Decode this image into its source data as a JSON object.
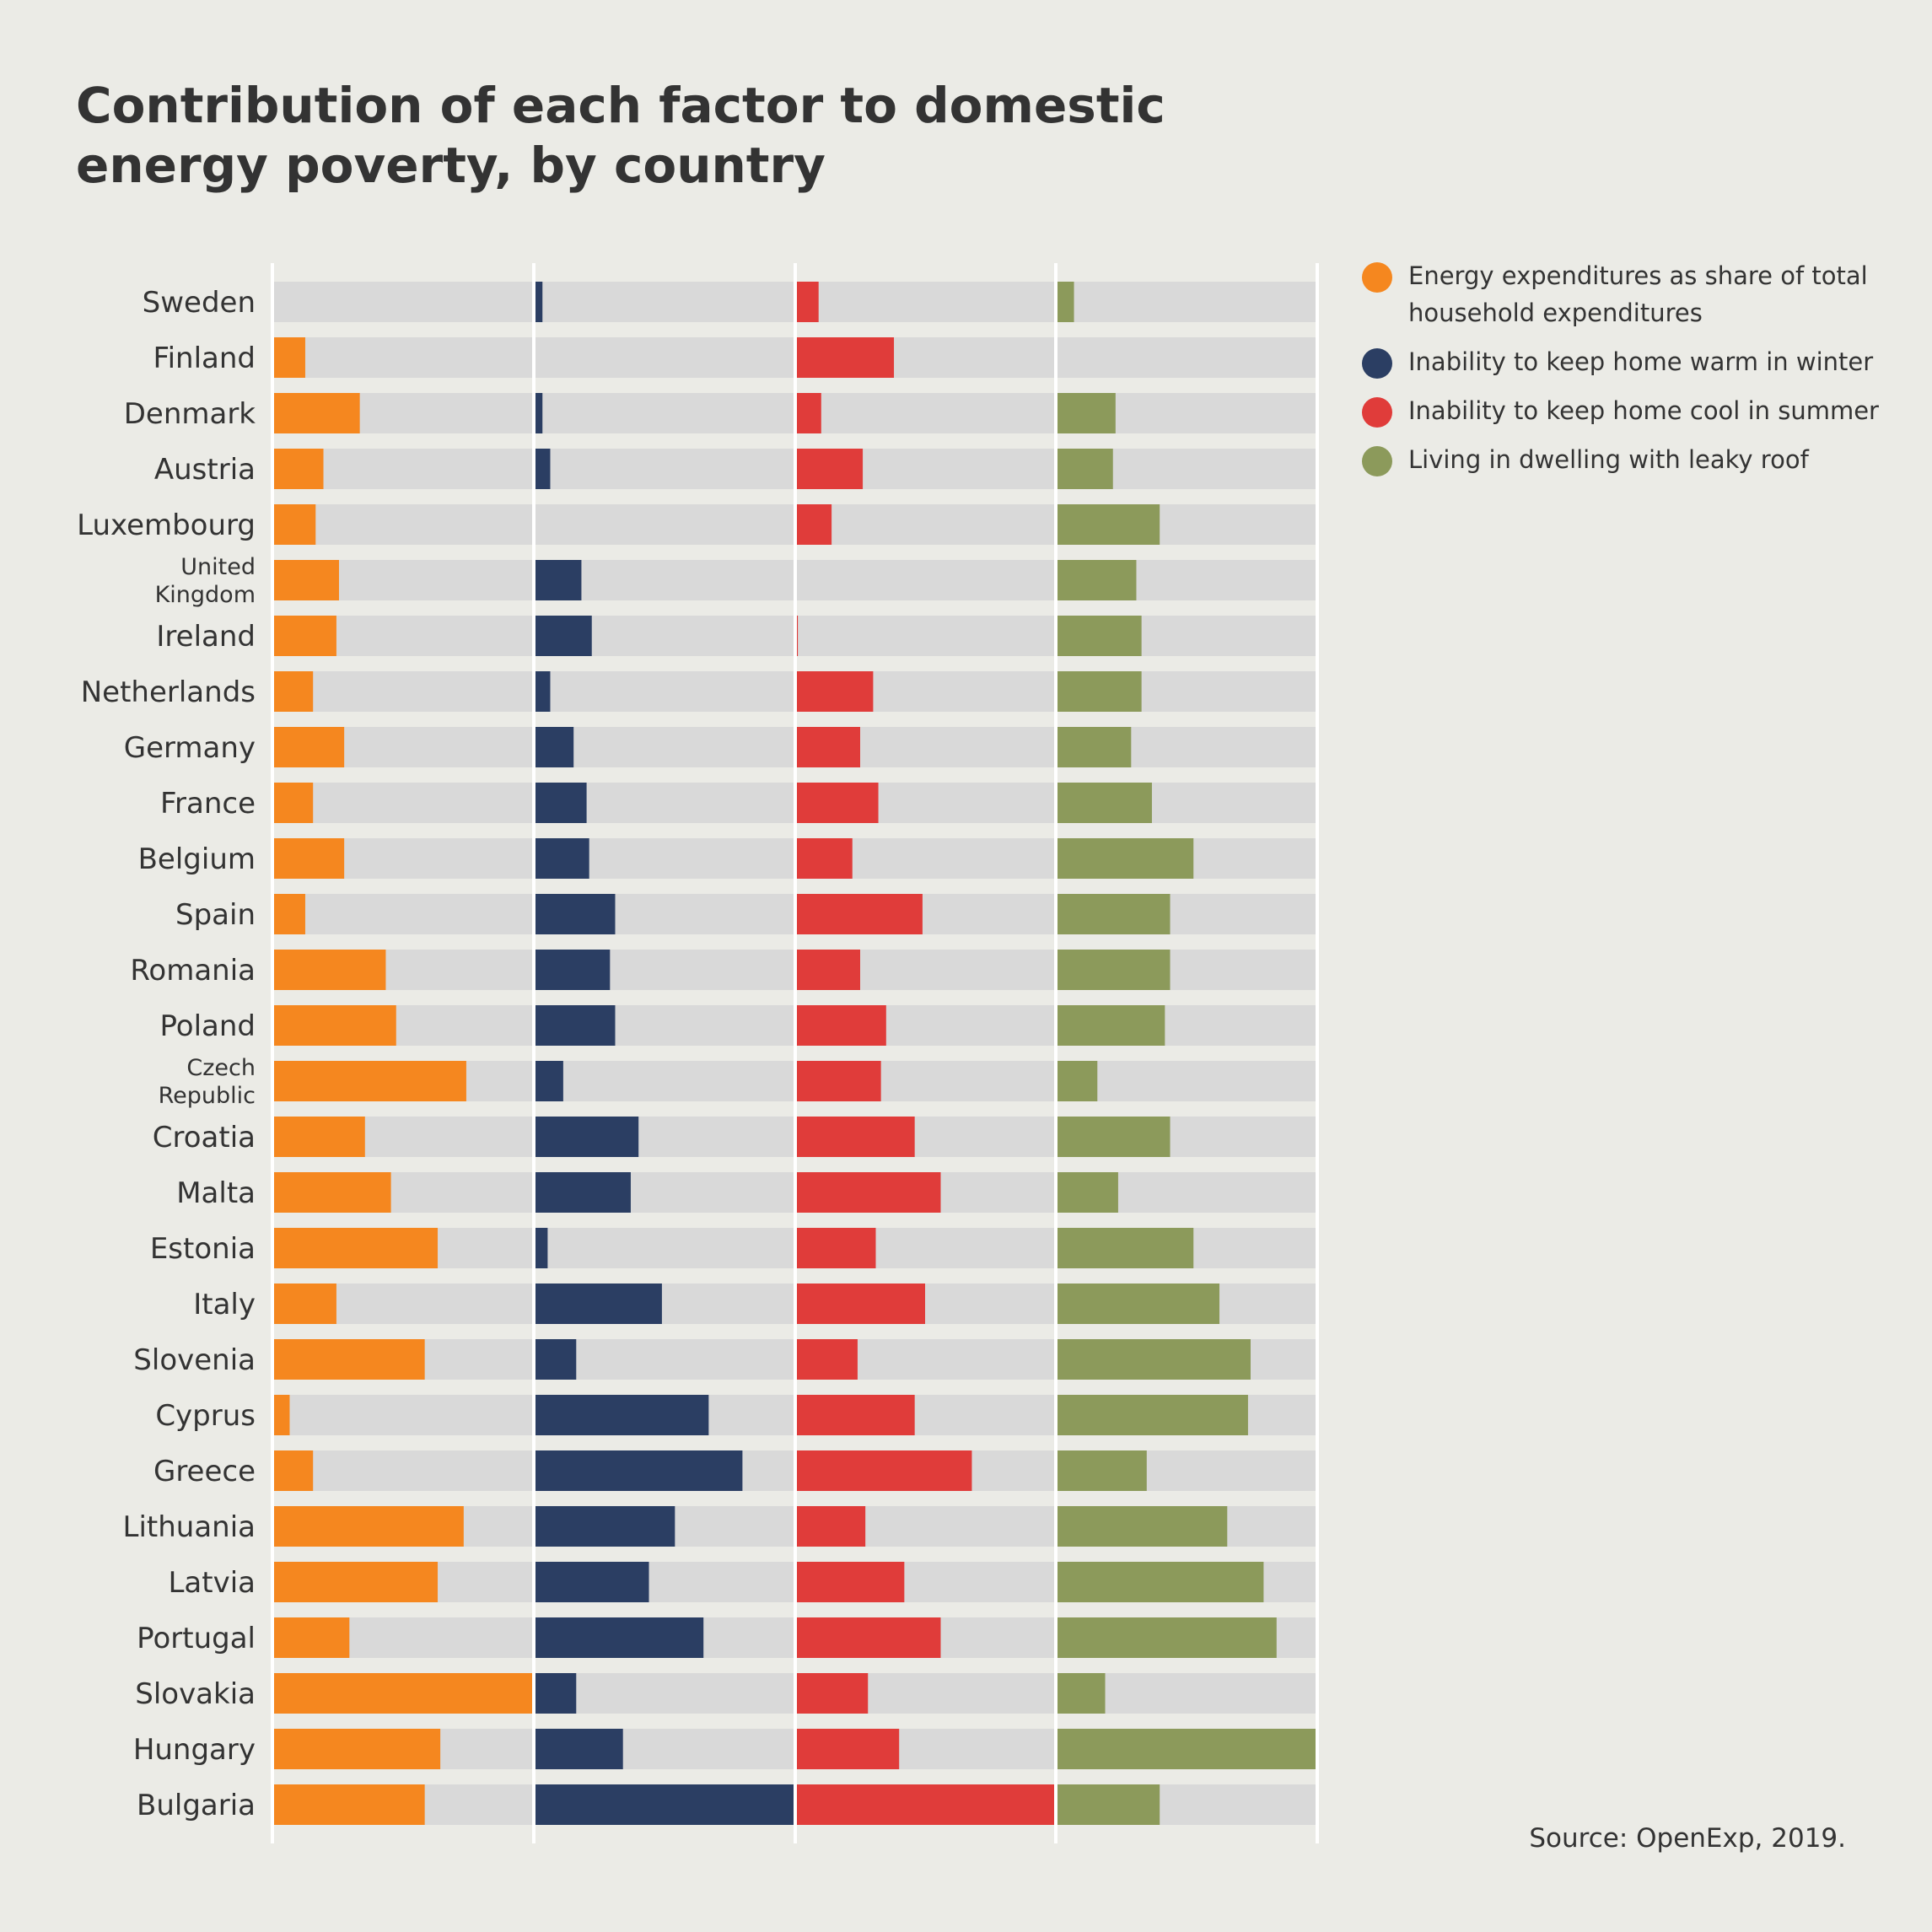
{
  "title_lines": [
    "Contribution of each factor to domestic",
    "energy poverty, by country"
  ],
  "source": "Source: OpenExp, 2019.",
  "colors": {
    "background": "#ebebe6",
    "track": "#d9d9d9",
    "divider": "#ffffff",
    "text": "#333333"
  },
  "legend": [
    {
      "label": "Energy expenditures as share of total household expenditures",
      "lines": [
        "Energy expenditures as share of total",
        "household expenditures"
      ],
      "color": "#f5871f"
    },
    {
      "label": "Inability to keep home warm in winter",
      "lines": [
        "Inability to keep home warm in winter"
      ],
      "color": "#2b3e63"
    },
    {
      "label": "Inability to keep home cool in summer",
      "lines": [
        "Inability to keep home cool in summer"
      ],
      "color": "#e03c3a"
    },
    {
      "label": "Living in dwelling with leaky roof",
      "lines": [
        "Living in dwelling with leaky roof"
      ],
      "color": "#8c9a5b"
    }
  ],
  "chart_data": {
    "type": "bar",
    "orientation": "horizontal",
    "layout": "small-multiples",
    "scale": "relative share of panel width (0-1)",
    "categories": [
      "Sweden",
      "Finland",
      "Denmark",
      "Austria",
      "Luxembourg",
      "United Kingdom",
      "Ireland",
      "Netherlands",
      "Germany",
      "France",
      "Belgium",
      "Spain",
      "Romania",
      "Poland",
      "Czech Republic",
      "Croatia",
      "Malta",
      "Estonia",
      "Italy",
      "Slovenia",
      "Cyprus",
      "Greece",
      "Lithuania",
      "Latvia",
      "Portugal",
      "Slovakia",
      "Hungary",
      "Bulgaria"
    ],
    "category_lines": [
      [
        "Sweden"
      ],
      [
        "Finland"
      ],
      [
        "Denmark"
      ],
      [
        "Austria"
      ],
      [
        "Luxembourg"
      ],
      [
        "United",
        "Kingdom"
      ],
      [
        "Ireland"
      ],
      [
        "Netherlands"
      ],
      [
        "Germany"
      ],
      [
        "France"
      ],
      [
        "Belgium"
      ],
      [
        "Spain"
      ],
      [
        "Romania"
      ],
      [
        "Poland"
      ],
      [
        "Czech",
        "Republic"
      ],
      [
        "Croatia"
      ],
      [
        "Malta"
      ],
      [
        "Estonia"
      ],
      [
        "Italy"
      ],
      [
        "Slovenia"
      ],
      [
        "Cyprus"
      ],
      [
        "Greece"
      ],
      [
        "Lithuania"
      ],
      [
        "Latvia"
      ],
      [
        "Portugal"
      ],
      [
        "Slovakia"
      ],
      [
        "Hungary"
      ],
      [
        "Bulgaria"
      ]
    ],
    "series": [
      {
        "name": "Energy expenditures as share of total household expenditures",
        "color": "#f5871f",
        "values": [
          0,
          0.12,
          0.33,
          0.19,
          0.16,
          0.25,
          0.24,
          0.15,
          0.27,
          0.15,
          0.27,
          0.12,
          0.43,
          0.47,
          0.74,
          0.35,
          0.45,
          0.63,
          0.24,
          0.58,
          0.06,
          0.15,
          0.73,
          0.63,
          0.29,
          1.0,
          0.64,
          0.58
        ]
      },
      {
        "name": "Inability to keep home warm in winter",
        "color": "#2b3e63",
        "values": [
          0.03,
          0,
          0.03,
          0.06,
          0,
          0.18,
          0.22,
          0.06,
          0.15,
          0.2,
          0.21,
          0.31,
          0.29,
          0.31,
          0.11,
          0.4,
          0.37,
          0.05,
          0.49,
          0.16,
          0.67,
          0.8,
          0.54,
          0.44,
          0.65,
          0.16,
          0.34,
          1.0
        ]
      },
      {
        "name": "Inability to keep home cool in summer",
        "color": "#e03c3a",
        "values": [
          0.09,
          0.38,
          0.1,
          0.26,
          0.14,
          0,
          0.01,
          0.3,
          0.25,
          0.32,
          0.22,
          0.49,
          0.25,
          0.35,
          0.33,
          0.46,
          0.56,
          0.31,
          0.5,
          0.24,
          0.46,
          0.68,
          0.27,
          0.42,
          0.56,
          0.28,
          0.4,
          1.0
        ]
      },
      {
        "name": "Living in dwelling with leaky roof",
        "color": "#8c9a5b",
        "values": [
          0.07,
          0,
          0.23,
          0.22,
          0.4,
          0.31,
          0.33,
          0.33,
          0.29,
          0.37,
          0.53,
          0.44,
          0.44,
          0.42,
          0.16,
          0.44,
          0.24,
          0.53,
          0.63,
          0.75,
          0.74,
          0.35,
          0.66,
          0.8,
          0.85,
          0.19,
          1.0,
          0.4
        ]
      }
    ],
    "grid": false,
    "legend_position": "right"
  }
}
